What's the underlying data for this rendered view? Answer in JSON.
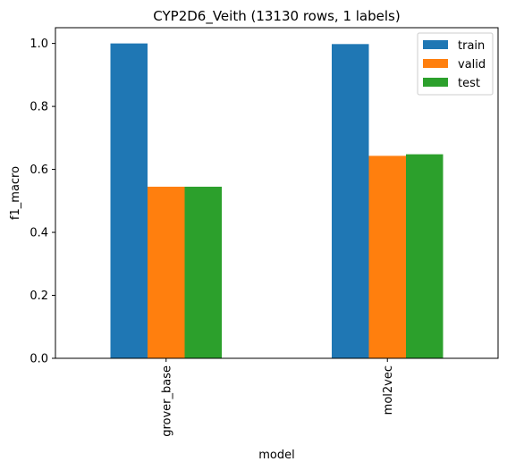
{
  "chart_data": {
    "type": "bar",
    "title": "CYP2D6_Veith (13130 rows, 1 labels)",
    "xlabel": "model",
    "ylabel": "f1_macro",
    "categories": [
      "grover_base",
      "mol2vec"
    ],
    "series": [
      {
        "name": "train",
        "values": [
          1.0,
          0.998
        ],
        "color": "#1f77b4"
      },
      {
        "name": "valid",
        "values": [
          0.545,
          0.643
        ],
        "color": "#ff7f0e"
      },
      {
        "name": "test",
        "values": [
          0.545,
          0.648
        ],
        "color": "#2ca02c"
      }
    ],
    "ylim": [
      0,
      1.05
    ],
    "yticks": [
      0.0,
      0.2,
      0.4,
      0.6,
      0.8,
      1.0
    ],
    "ytick_labels": [
      "0.0",
      "0.2",
      "0.4",
      "0.6",
      "0.8",
      "1.0"
    ],
    "grid": false,
    "legend_position": "top-right"
  }
}
